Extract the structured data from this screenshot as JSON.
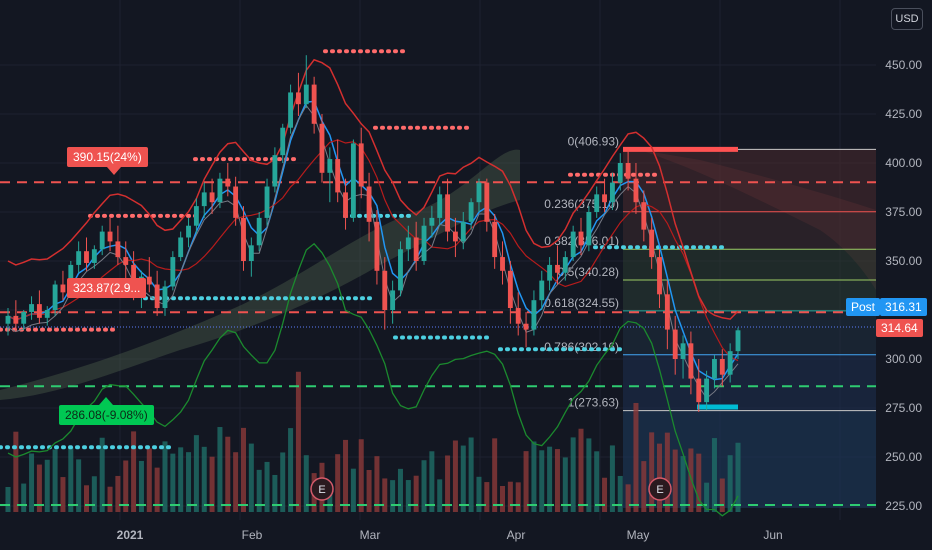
{
  "currency_button": "USD",
  "price_axis": {
    "ticks": [
      "450.00",
      "425.00",
      "400.00",
      "375.00",
      "350.00",
      "325.00",
      "300.00",
      "275.00",
      "250.00",
      "225.00"
    ]
  },
  "time_axis": {
    "labels": [
      "2021",
      "Feb",
      "Mar",
      "Apr",
      "May",
      "Jun"
    ]
  },
  "price_tags": {
    "post_label": "Post",
    "post_price": "316.31",
    "last_price": "314.64"
  },
  "callouts": {
    "high": "390.15(24%)",
    "mid": "323.87(2.9...",
    "low": "286.08(-9.08%)"
  },
  "fibonacci": [
    {
      "label": "0(406.93)",
      "value": 406.93
    },
    {
      "label": "0.236(375.10)",
      "value": 375.1
    },
    {
      "label": "0.382(356.01)",
      "value": 356.01
    },
    {
      "label": "0.5(340.28)",
      "value": 340.28
    },
    {
      "label": "0.618(324.55)",
      "value": 324.55
    },
    {
      "label": "0.786(302.16)",
      "value": 302.16
    },
    {
      "label": "1(273.63)",
      "value": 273.63
    }
  ],
  "earnings_markers": [
    "E",
    "E"
  ],
  "colors": {
    "up": "#26a69a",
    "down": "#ef5350",
    "background": "#131722",
    "accent": "#2196f3",
    "ma_red": "#d32f2f",
    "ma_blue": "#2196f3",
    "green_line": "#1b8a2e"
  },
  "chart_data": {
    "type": "candlestick",
    "symbol_currency": "USD",
    "ylim": [
      225,
      462
    ],
    "month_labels": [
      "2021",
      "Feb",
      "Mar",
      "Apr",
      "May",
      "Jun"
    ],
    "candles": [
      {
        "o": 318,
        "h": 326,
        "c": 322,
        "l": 312
      },
      {
        "o": 322,
        "h": 330,
        "c": 318,
        "l": 314
      },
      {
        "o": 318,
        "h": 325,
        "c": 324,
        "l": 315
      },
      {
        "o": 324,
        "h": 332,
        "c": 328,
        "l": 320
      },
      {
        "o": 328,
        "h": 335,
        "c": 321,
        "l": 318
      },
      {
        "o": 321,
        "h": 327,
        "c": 325,
        "l": 317
      },
      {
        "o": 325,
        "h": 340,
        "c": 338,
        "l": 322
      },
      {
        "o": 338,
        "h": 345,
        "c": 334,
        "l": 330
      },
      {
        "o": 334,
        "h": 350,
        "c": 348,
        "l": 332
      },
      {
        "o": 348,
        "h": 360,
        "c": 355,
        "l": 344
      },
      {
        "o": 355,
        "h": 362,
        "c": 349,
        "l": 345
      },
      {
        "o": 349,
        "h": 358,
        "c": 356,
        "l": 346
      },
      {
        "o": 356,
        "h": 368,
        "c": 365,
        "l": 353
      },
      {
        "o": 365,
        "h": 372,
        "c": 360,
        "l": 355
      },
      {
        "o": 360,
        "h": 368,
        "c": 352,
        "l": 348
      },
      {
        "o": 352,
        "h": 360,
        "c": 348,
        "l": 340
      },
      {
        "o": 348,
        "h": 355,
        "c": 335,
        "l": 330
      },
      {
        "o": 335,
        "h": 345,
        "c": 342,
        "l": 326
      },
      {
        "o": 342,
        "h": 352,
        "c": 338,
        "l": 334
      },
      {
        "o": 338,
        "h": 345,
        "c": 326,
        "l": 322
      },
      {
        "o": 326,
        "h": 340,
        "c": 337,
        "l": 322
      },
      {
        "o": 337,
        "h": 355,
        "c": 352,
        "l": 335
      },
      {
        "o": 352,
        "h": 365,
        "c": 362,
        "l": 350
      },
      {
        "o": 362,
        "h": 372,
        "c": 368,
        "l": 357
      },
      {
        "o": 368,
        "h": 382,
        "c": 378,
        "l": 364
      },
      {
        "o": 378,
        "h": 390,
        "c": 385,
        "l": 372
      },
      {
        "o": 385,
        "h": 392,
        "c": 380,
        "l": 374
      },
      {
        "o": 380,
        "h": 395,
        "c": 392,
        "l": 377
      },
      {
        "o": 392,
        "h": 400,
        "c": 388,
        "l": 383
      },
      {
        "o": 388,
        "h": 393,
        "c": 372,
        "l": 368
      },
      {
        "o": 372,
        "h": 378,
        "c": 350,
        "l": 345
      },
      {
        "o": 350,
        "h": 362,
        "c": 358,
        "l": 342
      },
      {
        "o": 358,
        "h": 375,
        "c": 372,
        "l": 355
      },
      {
        "o": 372,
        "h": 392,
        "c": 388,
        "l": 368
      },
      {
        "o": 388,
        "h": 408,
        "c": 404,
        "l": 385
      },
      {
        "o": 404,
        "h": 420,
        "c": 418,
        "l": 400
      },
      {
        "o": 418,
        "h": 440,
        "c": 436,
        "l": 415
      },
      {
        "o": 436,
        "h": 446,
        "c": 430,
        "l": 424
      },
      {
        "o": 430,
        "h": 455,
        "c": 440,
        "l": 428
      },
      {
        "o": 440,
        "h": 444,
        "c": 420,
        "l": 415
      },
      {
        "o": 420,
        "h": 425,
        "c": 395,
        "l": 390
      },
      {
        "o": 395,
        "h": 408,
        "c": 402,
        "l": 380
      },
      {
        "o": 402,
        "h": 412,
        "c": 385,
        "l": 380
      },
      {
        "o": 385,
        "h": 392,
        "c": 372,
        "l": 366
      },
      {
        "o": 372,
        "h": 412,
        "c": 410,
        "l": 370
      },
      {
        "o": 410,
        "h": 418,
        "c": 388,
        "l": 382
      },
      {
        "o": 388,
        "h": 395,
        "c": 370,
        "l": 360
      },
      {
        "o": 370,
        "h": 376,
        "c": 345,
        "l": 338
      },
      {
        "o": 345,
        "h": 352,
        "c": 325,
        "l": 315
      },
      {
        "o": 325,
        "h": 340,
        "c": 335,
        "l": 318
      },
      {
        "o": 335,
        "h": 360,
        "c": 356,
        "l": 332
      },
      {
        "o": 356,
        "h": 368,
        "c": 362,
        "l": 350
      },
      {
        "o": 362,
        "h": 370,
        "c": 350,
        "l": 345
      },
      {
        "o": 350,
        "h": 372,
        "c": 368,
        "l": 348
      },
      {
        "o": 368,
        "h": 378,
        "c": 372,
        "l": 362
      },
      {
        "o": 372,
        "h": 388,
        "c": 384,
        "l": 368
      },
      {
        "o": 384,
        "h": 392,
        "c": 365,
        "l": 360
      },
      {
        "o": 365,
        "h": 372,
        "c": 360,
        "l": 352
      },
      {
        "o": 360,
        "h": 375,
        "c": 370,
        "l": 356
      },
      {
        "o": 370,
        "h": 382,
        "c": 380,
        "l": 366
      },
      {
        "o": 380,
        "h": 392,
        "c": 390,
        "l": 375
      },
      {
        "o": 390,
        "h": 392,
        "c": 370,
        "l": 365
      },
      {
        "o": 370,
        "h": 374,
        "c": 352,
        "l": 346
      },
      {
        "o": 352,
        "h": 360,
        "c": 345,
        "l": 338
      },
      {
        "o": 345,
        "h": 350,
        "c": 326,
        "l": 318
      },
      {
        "o": 326,
        "h": 334,
        "c": 318,
        "l": 312
      },
      {
        "o": 318,
        "h": 324,
        "c": 315,
        "l": 306
      },
      {
        "o": 315,
        "h": 335,
        "c": 330,
        "l": 312
      },
      {
        "o": 330,
        "h": 345,
        "c": 340,
        "l": 325
      },
      {
        "o": 340,
        "h": 352,
        "c": 348,
        "l": 335
      },
      {
        "o": 348,
        "h": 358,
        "c": 344,
        "l": 338
      },
      {
        "o": 344,
        "h": 355,
        "c": 352,
        "l": 340
      },
      {
        "o": 352,
        "h": 368,
        "c": 365,
        "l": 350
      },
      {
        "o": 365,
        "h": 372,
        "c": 358,
        "l": 353
      },
      {
        "o": 358,
        "h": 378,
        "c": 375,
        "l": 355
      },
      {
        "o": 375,
        "h": 388,
        "c": 384,
        "l": 372
      },
      {
        "o": 384,
        "h": 392,
        "c": 380,
        "l": 375
      },
      {
        "o": 380,
        "h": 395,
        "c": 390,
        "l": 376
      },
      {
        "o": 390,
        "h": 405,
        "c": 400,
        "l": 386
      },
      {
        "o": 400,
        "h": 407,
        "c": 392,
        "l": 386
      },
      {
        "o": 392,
        "h": 400,
        "c": 380,
        "l": 374
      },
      {
        "o": 380,
        "h": 386,
        "c": 366,
        "l": 360
      },
      {
        "o": 366,
        "h": 372,
        "c": 352,
        "l": 346
      },
      {
        "o": 352,
        "h": 356,
        "c": 333,
        "l": 326
      },
      {
        "o": 333,
        "h": 340,
        "c": 315,
        "l": 305
      },
      {
        "o": 315,
        "h": 322,
        "c": 300,
        "l": 292
      },
      {
        "o": 300,
        "h": 312,
        "c": 308,
        "l": 290
      },
      {
        "o": 308,
        "h": 314,
        "c": 290,
        "l": 282
      },
      {
        "o": 290,
        "h": 300,
        "c": 278,
        "l": 273
      },
      {
        "o": 278,
        "h": 294,
        "c": 290,
        "l": 274
      },
      {
        "o": 290,
        "h": 302,
        "c": 300,
        "l": 285
      },
      {
        "o": 300,
        "h": 305,
        "c": 292,
        "l": 286
      },
      {
        "o": 292,
        "h": 308,
        "c": 304,
        "l": 288
      },
      {
        "o": 304,
        "h": 316,
        "c": 314.64,
        "l": 300
      }
    ]
  }
}
